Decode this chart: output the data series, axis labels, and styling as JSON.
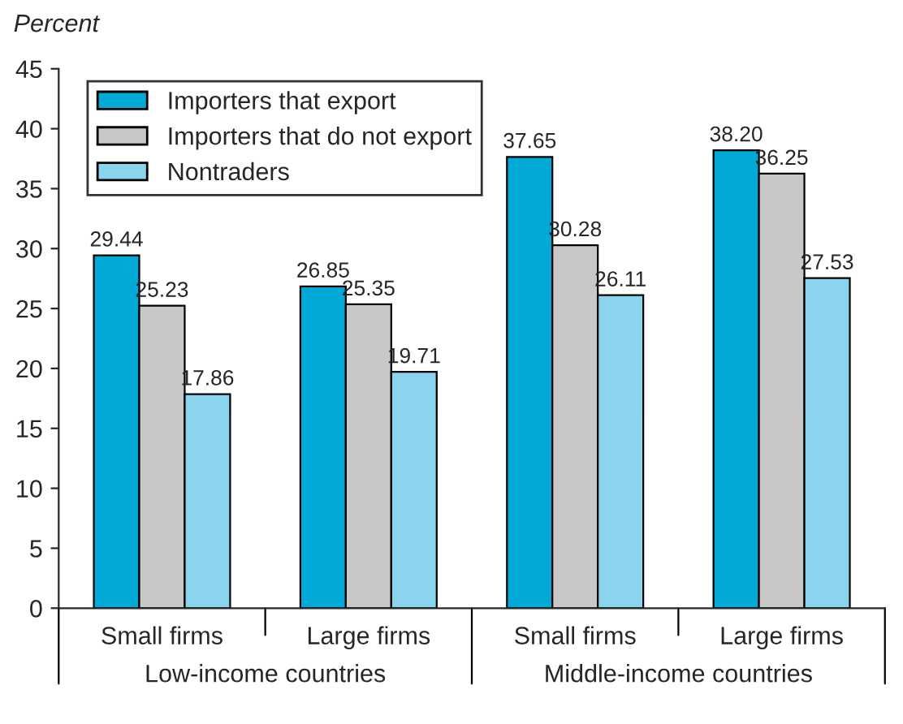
{
  "chart_data": {
    "type": "bar",
    "ylabel": "Percent",
    "categories": [
      "Small firms",
      "Large firms",
      "Small firms",
      "Large firms"
    ],
    "series": [
      {
        "name": "Importers that export",
        "color": "#00a9d6",
        "values": [
          29.44,
          26.85,
          37.65,
          38.2
        ]
      },
      {
        "name": "Importers that do not export",
        "color": "#c8c8c8",
        "values": [
          25.23,
          25.35,
          30.28,
          36.25
        ]
      },
      {
        "name": "Nontraders",
        "color": "#8ad4ee",
        "values": [
          17.86,
          19.71,
          26.11,
          27.53
        ]
      }
    ],
    "value_labels": [
      [
        "29.44",
        "26.85",
        "37.65",
        "38.20"
      ],
      [
        "25.23",
        "25.35",
        "30.28",
        "36.25"
      ],
      [
        "17.86",
        "19.71",
        "26.11",
        "27.53"
      ]
    ],
    "annotations": [
      "Low-income countries",
      "Middle-income countries"
    ],
    "ylim": [
      0,
      45
    ],
    "yticks": [
      0,
      5,
      10,
      15,
      20,
      25,
      30,
      35,
      40,
      45
    ],
    "grid": false,
    "legend": "top left"
  }
}
